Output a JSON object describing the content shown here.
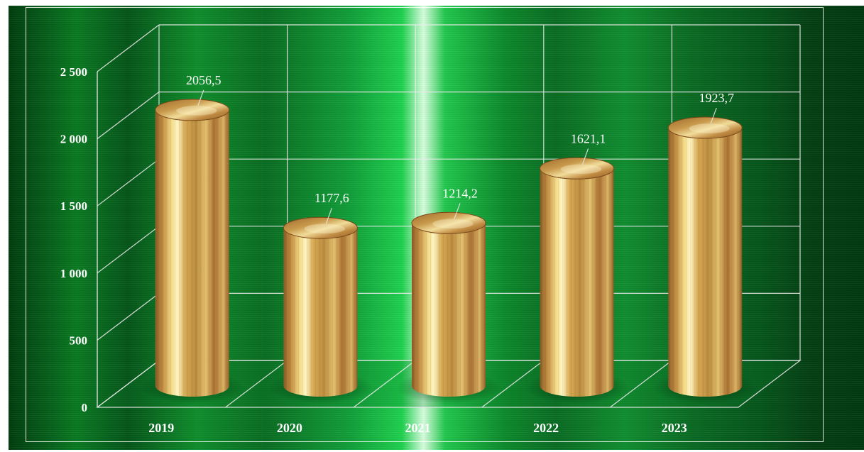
{
  "chart_data": {
    "type": "bar",
    "categories": [
      "2019",
      "2020",
      "2021",
      "2022",
      "2023"
    ],
    "values": [
      2056.5,
      1177.6,
      1214.2,
      1621.1,
      1923.7
    ],
    "value_labels": [
      "2056,5",
      "1177,6",
      "1214,2",
      "1621,1",
      "1923,7"
    ],
    "y_ticks": [
      0,
      500,
      1000,
      1500,
      2000,
      2500
    ],
    "y_tick_labels": [
      "0",
      "500",
      "1 000",
      "1 500",
      "2 000",
      "2 500"
    ],
    "ylim": [
      0,
      2500
    ],
    "grid": true,
    "legend": "none",
    "bar_shape": "3d-cylinder",
    "colors": {
      "bar": "#c8a040",
      "background": "#0a7a22",
      "text": "#ffffff",
      "grid": "#dddddd"
    }
  }
}
